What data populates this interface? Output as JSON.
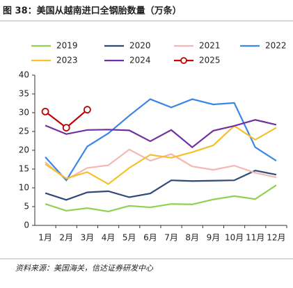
{
  "chart_data": {
    "type": "line",
    "title": "图 38：美国从越南进口全钢胎数量（万条）",
    "source": "资料来源：美国海关，信达证券研发中心",
    "categories": [
      "1月",
      "2月",
      "3月",
      "4月",
      "5月",
      "6月",
      "7月",
      "8月",
      "9月",
      "10月",
      "11月",
      "12月"
    ],
    "ylim": [
      0,
      40
    ],
    "yticks": [
      0,
      5,
      10,
      15,
      20,
      25,
      30,
      35,
      40
    ],
    "series": [
      {
        "name": "2019",
        "color": "#92d050",
        "values": [
          5.7,
          3.9,
          4.6,
          3.7,
          5.2,
          4.8,
          5.7,
          5.6,
          6.9,
          7.8,
          7.0,
          10.7
        ]
      },
      {
        "name": "2020",
        "color": "#2f4a7a",
        "values": [
          8.6,
          6.8,
          8.8,
          9.1,
          7.5,
          8.5,
          12.0,
          11.8,
          11.9,
          12.0,
          14.6,
          13.5
        ]
      },
      {
        "name": "2021",
        "color": "#f4b6b0",
        "values": [
          16.8,
          12.2,
          15.3,
          16.0,
          20.2,
          17.2,
          19.0,
          15.7,
          14.8,
          15.9,
          14.0,
          12.8
        ]
      },
      {
        "name": "2022",
        "color": "#3a85e8",
        "values": [
          18.2,
          12.0,
          21.0,
          24.5,
          29.2,
          33.6,
          31.4,
          33.6,
          32.2,
          32.6,
          20.8,
          17.2
        ]
      },
      {
        "name": "2023",
        "color": "#f5c02a",
        "values": [
          16.3,
          12.5,
          14.2,
          11.0,
          15.3,
          18.8,
          18.0,
          19.5,
          21.3,
          26.5,
          22.8,
          26.0
        ]
      },
      {
        "name": "2024",
        "color": "#7030a0",
        "values": [
          26.6,
          24.3,
          25.4,
          25.5,
          25.3,
          22.4,
          25.4,
          20.8,
          25.2,
          26.5,
          28.1,
          26.8
        ]
      },
      {
        "name": "2025",
        "color": "#c00000",
        "marker": "circle",
        "values": [
          30.3,
          26.0,
          30.8,
          null,
          null,
          null,
          null,
          null,
          null,
          null,
          null,
          null
        ]
      }
    ]
  }
}
